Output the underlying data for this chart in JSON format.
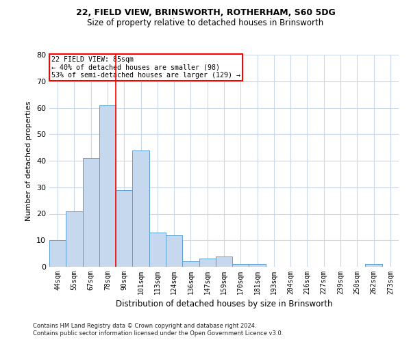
{
  "title1": "22, FIELD VIEW, BRINSWORTH, ROTHERHAM, S60 5DG",
  "title2": "Size of property relative to detached houses in Brinsworth",
  "xlabel": "Distribution of detached houses by size in Brinsworth",
  "ylabel": "Number of detached properties",
  "categories": [
    "44sqm",
    "55sqm",
    "67sqm",
    "78sqm",
    "90sqm",
    "101sqm",
    "113sqm",
    "124sqm",
    "136sqm",
    "147sqm",
    "159sqm",
    "170sqm",
    "181sqm",
    "193sqm",
    "204sqm",
    "216sqm",
    "227sqm",
    "239sqm",
    "250sqm",
    "262sqm",
    "273sqm"
  ],
  "values": [
    10,
    21,
    41,
    61,
    29,
    44,
    13,
    12,
    2,
    3,
    4,
    1,
    1,
    0,
    0,
    0,
    0,
    0,
    0,
    1,
    0
  ],
  "bar_color": "#c5d8ed",
  "bar_edge_color": "#5a9fd4",
  "ylim": [
    0,
    80
  ],
  "yticks": [
    0,
    10,
    20,
    30,
    40,
    50,
    60,
    70,
    80
  ],
  "annotation_text_line1": "22 FIELD VIEW: 85sqm",
  "annotation_text_line2": "← 40% of detached houses are smaller (98)",
  "annotation_text_line3": "53% of semi-detached houses are larger (129) →",
  "red_line_index": 3.5,
  "footer1": "Contains HM Land Registry data © Crown copyright and database right 2024.",
  "footer2": "Contains public sector information licensed under the Open Government Licence v3.0.",
  "background_color": "#ffffff",
  "grid_color": "#c8d8e8"
}
